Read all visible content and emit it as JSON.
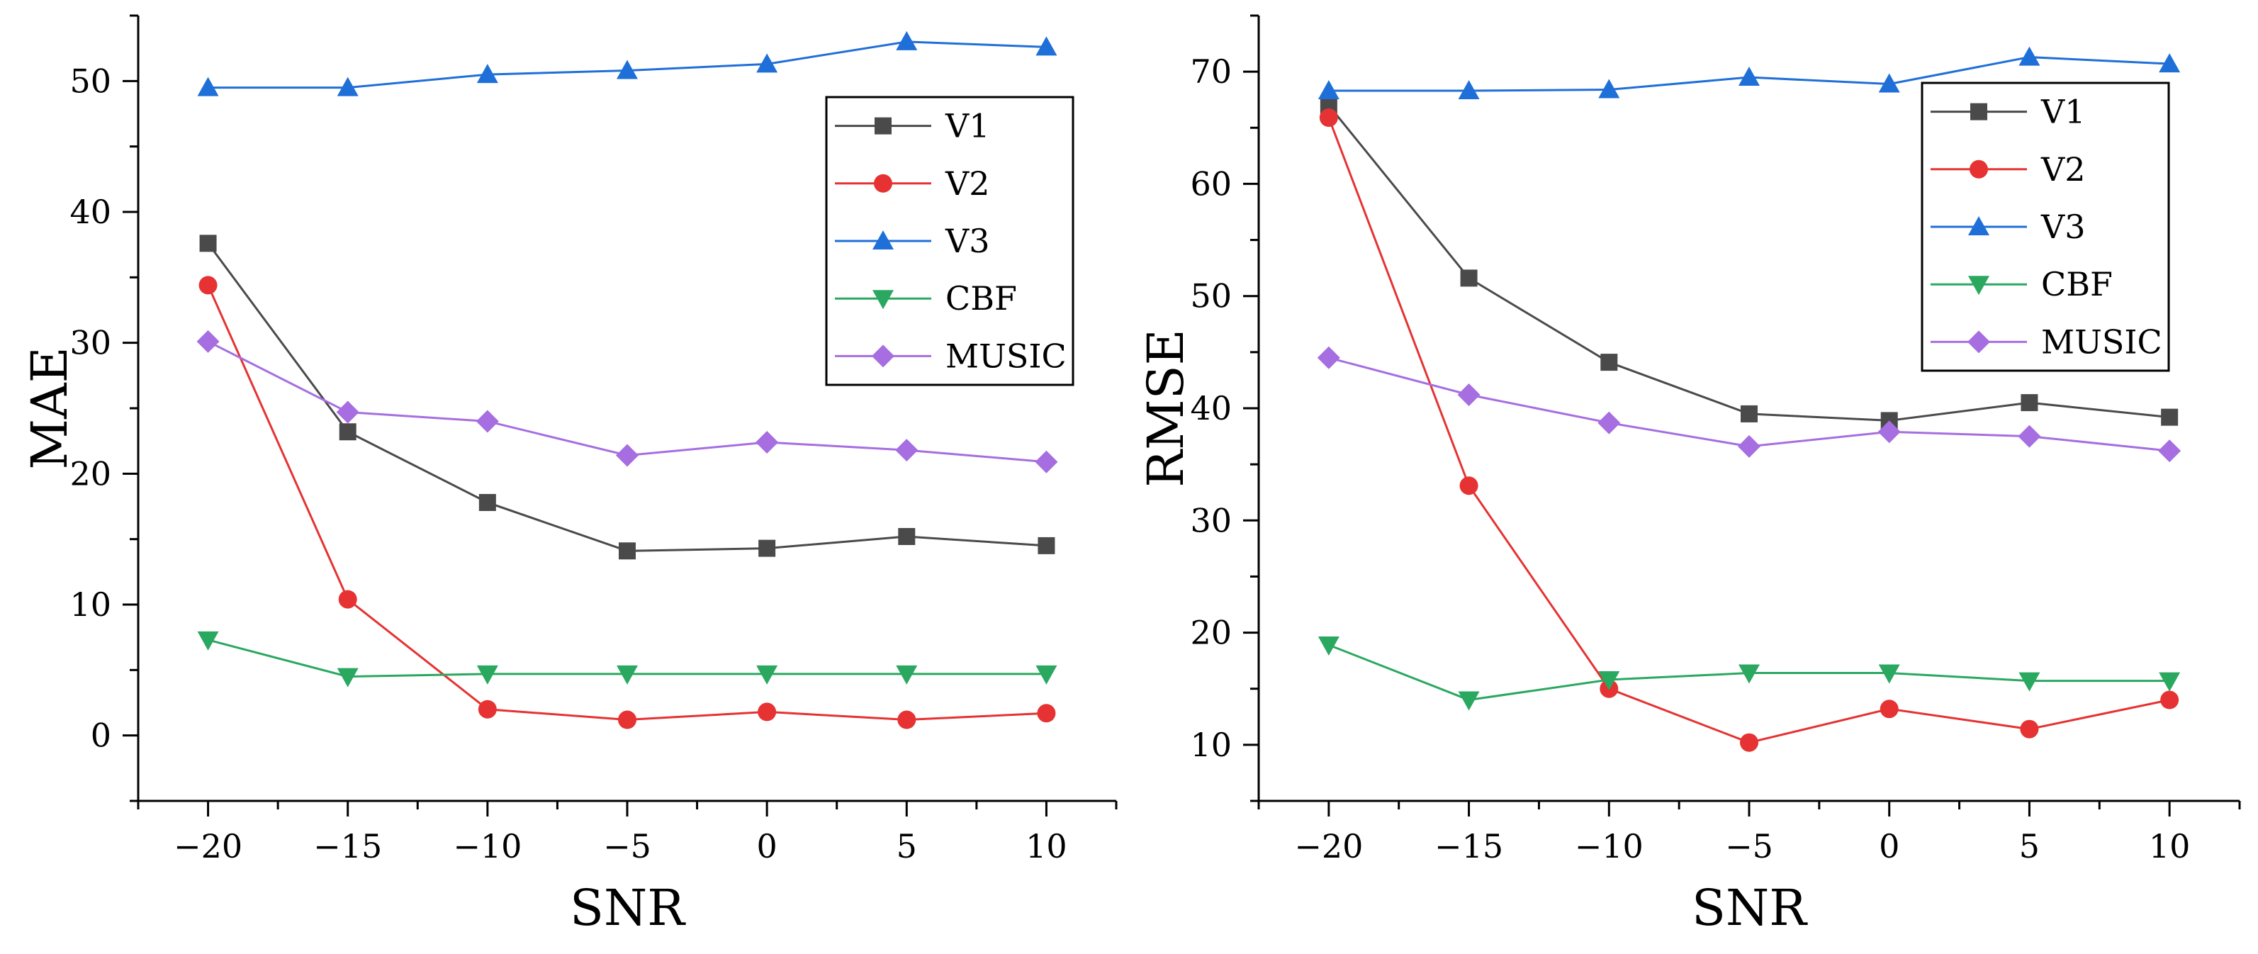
{
  "chart_data": [
    {
      "type": "line",
      "xlabel": "SNR",
      "ylabel": "MAE",
      "xlim": [
        -22.5,
        12.5
      ],
      "ylim": [
        -5,
        55
      ],
      "xticks": [
        -20,
        -15,
        -10,
        -5,
        0,
        5,
        10
      ],
      "yticks": [
        0,
        10,
        20,
        30,
        40,
        50
      ],
      "x": [
        -20,
        -15,
        -10,
        -5,
        0,
        5,
        10
      ],
      "series": [
        {
          "name": "V1",
          "marker": "square",
          "color": "#4a4a4a",
          "values": [
            37.6,
            23.2,
            17.8,
            14.1,
            14.3,
            15.2,
            14.5
          ]
        },
        {
          "name": "V2",
          "marker": "circle",
          "color": "#e63232",
          "values": [
            34.4,
            10.4,
            2.0,
            1.2,
            1.8,
            1.2,
            1.7
          ]
        },
        {
          "name": "V3",
          "marker": "triangle-up",
          "color": "#1f6fd8",
          "values": [
            49.5,
            49.5,
            50.5,
            50.8,
            51.3,
            53.0,
            52.6
          ]
        },
        {
          "name": "CBF",
          "marker": "triangle-down",
          "color": "#2aa860",
          "values": [
            7.3,
            4.5,
            4.7,
            4.7,
            4.7,
            4.7,
            4.7
          ]
        },
        {
          "name": "MUSIC",
          "marker": "diamond",
          "color": "#a66ee0",
          "values": [
            30.1,
            24.7,
            24.0,
            21.4,
            22.4,
            21.8,
            20.9
          ]
        }
      ]
    },
    {
      "type": "line",
      "xlabel": "SNR",
      "ylabel": "RMSE",
      "xlim": [
        -22.5,
        12.5
      ],
      "ylim": [
        5,
        75
      ],
      "xticks": [
        -20,
        -15,
        -10,
        -5,
        0,
        5,
        10
      ],
      "yticks": [
        10,
        20,
        30,
        40,
        50,
        60,
        70
      ],
      "x": [
        -20,
        -15,
        -10,
        -5,
        0,
        5,
        10
      ],
      "series": [
        {
          "name": "V1",
          "marker": "square",
          "color": "#4a4a4a",
          "values": [
            67.0,
            51.6,
            44.1,
            39.5,
            38.9,
            40.5,
            39.2
          ]
        },
        {
          "name": "V2",
          "marker": "circle",
          "color": "#e63232",
          "values": [
            65.9,
            33.1,
            15.0,
            10.2,
            13.2,
            11.4,
            14.0
          ]
        },
        {
          "name": "V3",
          "marker": "triangle-up",
          "color": "#1f6fd8",
          "values": [
            68.3,
            68.3,
            68.4,
            69.5,
            68.9,
            71.3,
            70.7
          ]
        },
        {
          "name": "CBF",
          "marker": "triangle-down",
          "color": "#2aa860",
          "values": [
            18.9,
            14.0,
            15.8,
            16.4,
            16.4,
            15.7,
            15.7
          ]
        },
        {
          "name": "MUSIC",
          "marker": "diamond",
          "color": "#a66ee0",
          "values": [
            44.5,
            41.2,
            38.7,
            36.6,
            37.9,
            37.5,
            36.2
          ]
        }
      ]
    }
  ]
}
